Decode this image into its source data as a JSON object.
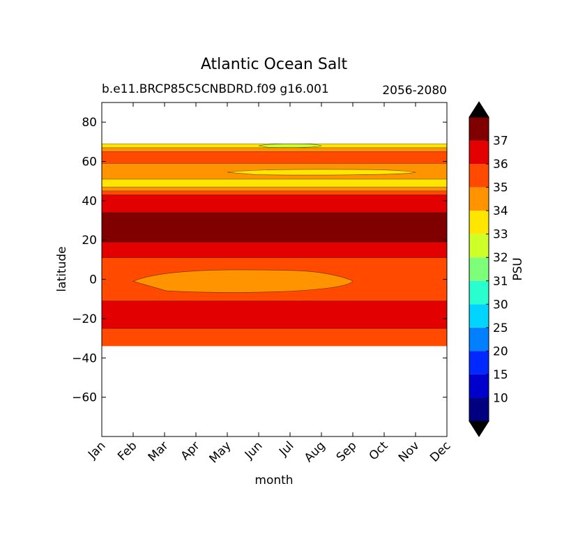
{
  "chart_data": {
    "type": "contourf",
    "title": "Atlantic Ocean Salt",
    "subtitle_left": "b.e11.BRCP85C5CNBDRD.f09 g16.001",
    "subtitle_right": "2056-2080",
    "xlabel": "month",
    "ylabel": "latitude",
    "x_categories": [
      "Jan",
      "Feb",
      "Mar",
      "Apr",
      "May",
      "Jun",
      "Jul",
      "Aug",
      "Sep",
      "Oct",
      "Nov",
      "Dec"
    ],
    "ylim": [
      -80,
      90
    ],
    "yticks": [
      -60,
      -40,
      -20,
      0,
      20,
      40,
      60,
      80
    ],
    "data_extent_latitude": [
      -34,
      69
    ],
    "colorbar": {
      "label": "PSU",
      "levels": [
        5,
        10,
        15,
        20,
        25,
        30,
        31,
        32,
        33,
        34,
        35,
        36,
        37,
        38
      ],
      "tick_labels": [
        "10",
        "15",
        "20",
        "25",
        "30",
        "31",
        "32",
        "33",
        "34",
        "35",
        "36",
        "37"
      ],
      "colors": [
        "#000080",
        "#0000CD",
        "#0028FF",
        "#0080FF",
        "#00D4FF",
        "#29FFCE",
        "#7DFF7A",
        "#CEFF29",
        "#FFE600",
        "#FF9400",
        "#FF4A00",
        "#E30000",
        "#800000"
      ],
      "extend": "both",
      "under_color": "#000000",
      "over_color": "#000000"
    },
    "bands": [
      {
        "lat_from": -34,
        "lat_to": -25,
        "psu_range": "35-36",
        "color": "#FF4A00"
      },
      {
        "lat_from": -25,
        "lat_to": -11,
        "psu_range": "36-37",
        "color": "#E30000"
      },
      {
        "lat_from": -11,
        "lat_to": 11,
        "psu_range": "35-36",
        "color": "#FF4A00"
      },
      {
        "lat_from": 11,
        "lat_to": 19,
        "psu_range": "36-37",
        "color": "#E30000"
      },
      {
        "lat_from": 19,
        "lat_to": 34,
        "psu_range": "37-38",
        "color": "#800000"
      },
      {
        "lat_from": 34,
        "lat_to": 43,
        "psu_range": "36-37",
        "color": "#E30000"
      },
      {
        "lat_from": 43,
        "lat_to": 45,
        "psu_range": "35-36",
        "color": "#FF4A00"
      },
      {
        "lat_from": 45,
        "lat_to": 47,
        "psu_range": "34-35",
        "color": "#FF9400"
      },
      {
        "lat_from": 47,
        "lat_to": 51,
        "psu_range": "33-34",
        "color": "#FFE600"
      },
      {
        "lat_from": 51,
        "lat_to": 59,
        "psu_range": "34-35",
        "color": "#FF9400"
      },
      {
        "lat_from": 59,
        "lat_to": 65,
        "psu_range": "35-36",
        "color": "#FF4A00"
      },
      {
        "lat_from": 65,
        "lat_to": 67,
        "psu_range": "34-35",
        "color": "#FF9400"
      },
      {
        "lat_from": 67,
        "lat_to": 69,
        "psu_range": "33-34",
        "color": "#FFE600"
      }
    ],
    "features": [
      {
        "description": "lower-salinity pocket near equator",
        "months": [
          "Feb",
          "Sep"
        ],
        "lat_range": [
          -7,
          5
        ],
        "psu_range": "34-35",
        "color": "#FF9400"
      },
      {
        "description": "fresher surface water near 68N in summer",
        "months": [
          "Jun",
          "Aug"
        ],
        "lat_range": [
          67,
          69
        ],
        "psu_range": "32-33",
        "color": "#CEFF29"
      },
      {
        "description": "33-34 tongue near 54N",
        "months": [
          "May",
          "Nov"
        ],
        "lat_range": [
          53,
          56
        ],
        "psu_range": "33-34",
        "color": "#FFE600"
      }
    ]
  }
}
